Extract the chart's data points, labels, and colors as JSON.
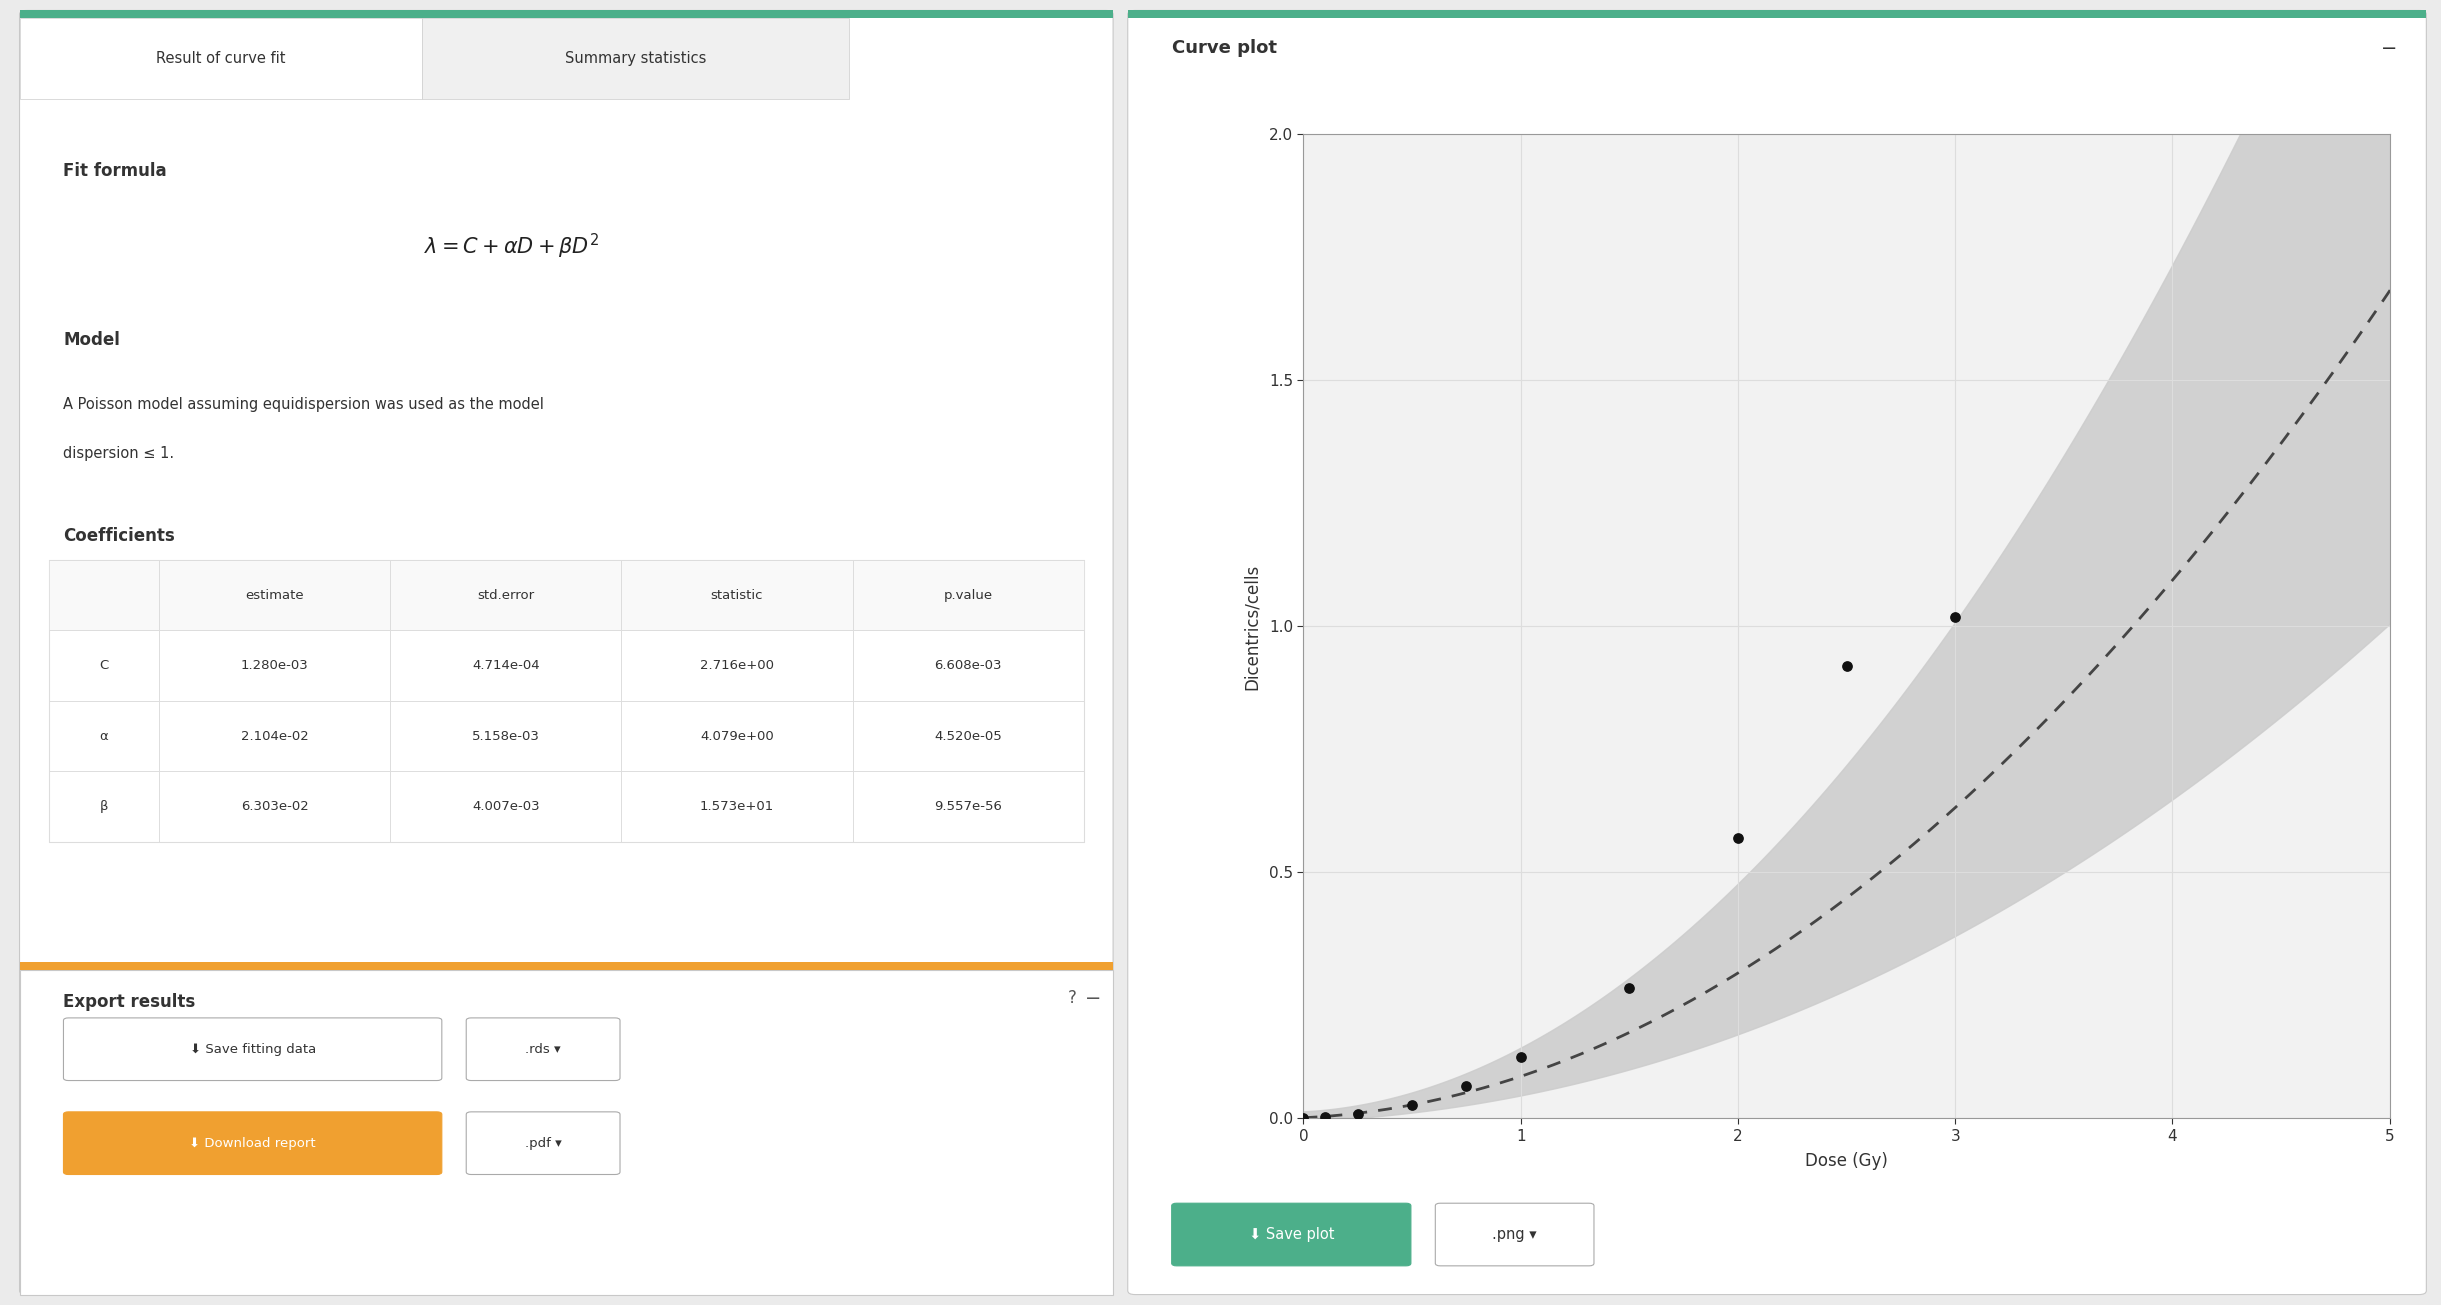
{
  "tab1_label": "Result of curve fit",
  "tab2_label": "Summary statistics",
  "fit_formula_label": "Fit formula",
  "fit_formula": "$\\lambda = C + \\alpha D + \\beta D^2$",
  "model_label": "Model",
  "model_text_line1": "A Poisson model assuming equidispersion was used as the model",
  "model_text_line2": "dispersion ≤ 1.",
  "coefficients_label": "Coefficients",
  "table_headers": [
    "",
    "estimate",
    "std.error",
    "statistic",
    "p.value"
  ],
  "table_rows": [
    [
      "C",
      "1.280e-03",
      "4.714e-04",
      "2.716e+00",
      "6.608e-03"
    ],
    [
      "α",
      "2.104e-02",
      "5.158e-03",
      "4.079e+00",
      "4.520e-05"
    ],
    [
      "β",
      "6.303e-02",
      "4.007e-03",
      "1.573e+01",
      "9.557e-56"
    ]
  ],
  "export_label": "Export results",
  "save_btn_label": "⬇ Save fitting data",
  "save_btn_ext": ".rds ▾",
  "download_btn_label": "⬇ Download report",
  "download_btn_ext": ".pdf ▾",
  "curve_plot_label": "Curve plot",
  "curve_minimize_label": "−",
  "xlabel": "Dose (Gy)",
  "ylabel": "Dicentrics/cells",
  "xlim": [
    0,
    5
  ],
  "ylim": [
    0,
    2.0
  ],
  "xticks": [
    0,
    1,
    2,
    3,
    4,
    5
  ],
  "yticks": [
    0.0,
    0.5,
    1.0,
    1.5,
    2.0
  ],
  "scatter_x": [
    0,
    0.1,
    0.25,
    0.5,
    0.75,
    1.0,
    1.5,
    2.0,
    2.5,
    3.0
  ],
  "scatter_y": [
    0.0013,
    0.0025,
    0.009,
    0.027,
    0.065,
    0.125,
    0.265,
    0.57,
    0.92,
    1.02
  ],
  "curve_C": 0.00128,
  "curve_alpha": 0.02104,
  "curve_beta": 0.06303,
  "bg_color": "#ebebeb",
  "panel_color": "#ffffff",
  "tab_bar_color": "#4caf8a",
  "header_bar_color": "#4caf8a",
  "table_header_bg": "#f9f9f9",
  "table_border_color": "#dddddd",
  "export_bar_color": "#f0a030",
  "download_btn_color": "#f0a030",
  "green_btn_color": "#4caf8a",
  "text_color": "#333333",
  "grid_color": "#dddddd",
  "curve_color": "#444444",
  "ci_color": "#cccccc",
  "scatter_color": "#111111",
  "plot_bg_color": "#f2f2f2"
}
